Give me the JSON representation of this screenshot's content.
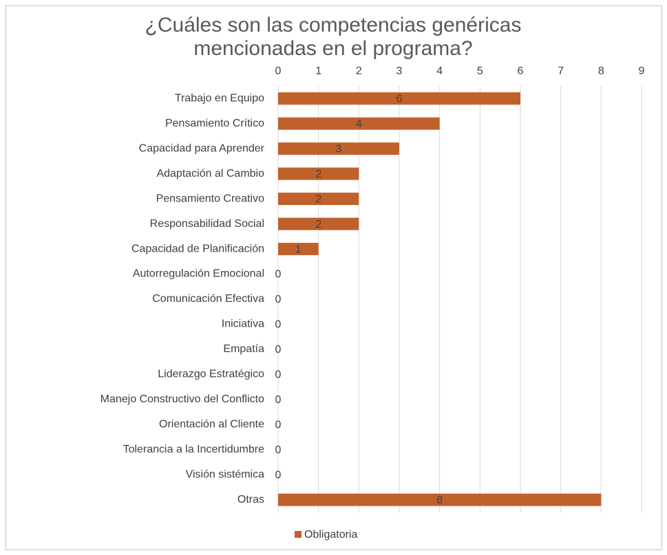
{
  "chart_data": {
    "type": "bar",
    "orientation": "horizontal",
    "title": "¿Cuáles son las competencias genéricas mencionadas en el programa?",
    "categories": [
      "Trabajo en Equipo",
      "Pensamiento Crítico",
      "Capacidad para Aprender",
      "Adaptación al Cambio",
      "Pensamiento Creativo",
      "Responsabilidad Social",
      "Capacidad de Planificación",
      "Autorregulación Emocional",
      "Comunicación Efectiva",
      "Iniciativa",
      "Empatía",
      "Liderazgo Estratégico",
      "Manejo Constructivo del Conflicto",
      "Orientación al Cliente",
      "Tolerancia a la Incertidumbre",
      "Visión sistémica",
      "Otras"
    ],
    "series": [
      {
        "name": "Obligatoria",
        "color": "#c0612b",
        "values": [
          6,
          4,
          3,
          2,
          2,
          2,
          1,
          0,
          0,
          0,
          0,
          0,
          0,
          0,
          0,
          0,
          8
        ]
      }
    ],
    "xlim": [
      0,
      9
    ],
    "xticks": [
      0,
      1,
      2,
      3,
      4,
      5,
      6,
      7,
      8,
      9
    ],
    "grid": true,
    "legend": "bottom"
  }
}
